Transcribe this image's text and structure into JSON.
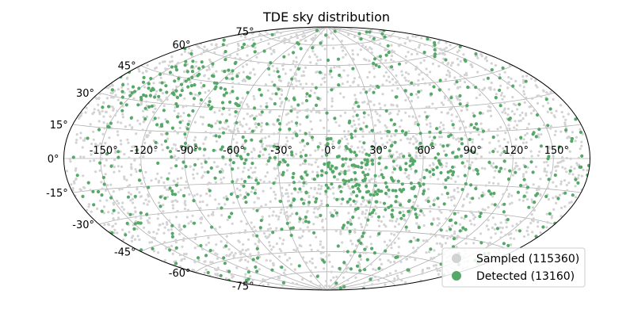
{
  "chart_data": {
    "type": "scatter",
    "projection": "hammer",
    "title": "TDE sky distribution",
    "xlabel": "",
    "ylabel": "",
    "grid": true,
    "legend_placement": "lower-right",
    "xlim": [
      -180,
      180
    ],
    "ylim": [
      -90,
      90
    ],
    "x_tick_labels": [
      "-150°",
      "-120°",
      "-90°",
      "-60°",
      "-30°",
      "0°",
      "30°",
      "60°",
      "90°",
      "120°",
      "150°"
    ],
    "y_tick_labels": [
      "-75°",
      "-60°",
      "-45°",
      "-30°",
      "-15°",
      "0°",
      "15°",
      "30°",
      "45°",
      "60°",
      "75°"
    ],
    "colors": {
      "sampled": "#d3d3d3",
      "detected": "#55a868",
      "grid": "#b0b0b0",
      "frame": "#000000"
    },
    "series": [
      {
        "name": "Sampled (115360)",
        "role": "sampled",
        "color": "#d3d3d3",
        "total": 115360
      },
      {
        "name": "Detected (13160)",
        "role": "detected",
        "color": "#55a868",
        "total": 13160
      }
    ]
  }
}
